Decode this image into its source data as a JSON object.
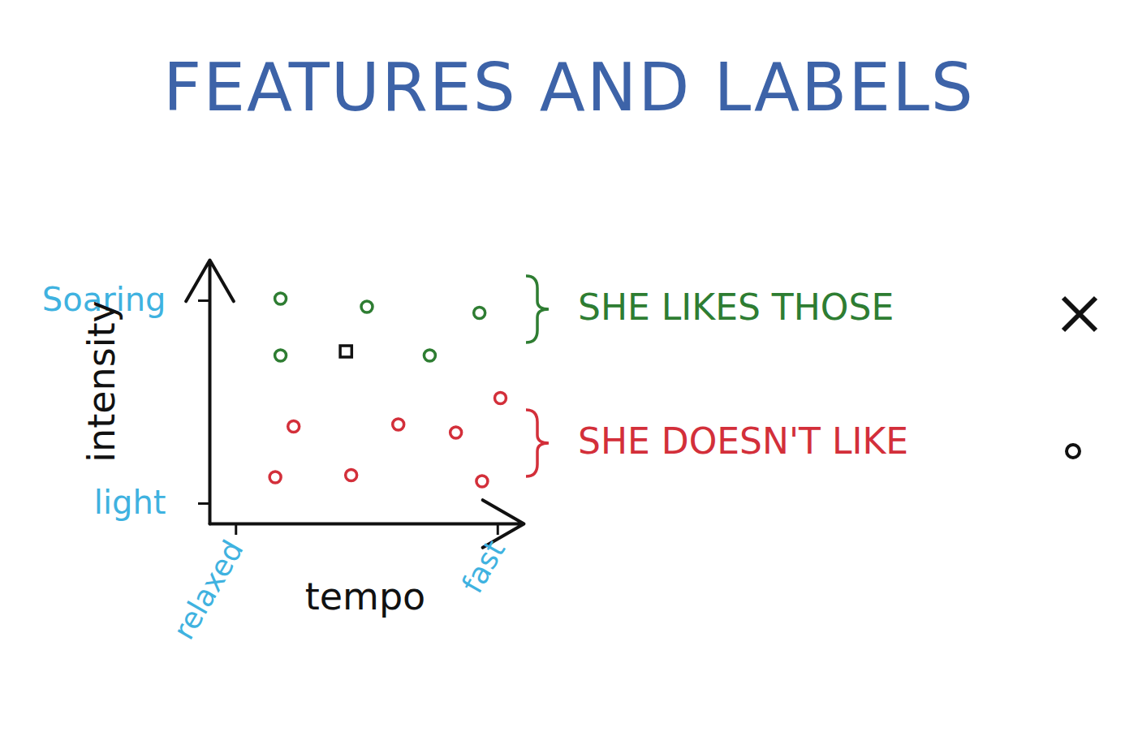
{
  "chart_data": {
    "type": "scatter",
    "title": "FEATURES AND LABELS",
    "x_label": "tempo",
    "y_label": "intensity",
    "xlim": [
      -1,
      11
    ],
    "ylim": [
      -1,
      12
    ],
    "xticks": [
      {
        "value": 0,
        "label": "relaxed"
      },
      {
        "value": 10,
        "label": "fast"
      }
    ],
    "yticks": [
      {
        "value": 0,
        "label": "light"
      },
      {
        "value": 10,
        "label": "Soaring"
      }
    ],
    "grid": false,
    "series": [
      {
        "name": "SHE LIKES THOSE",
        "color": "#2e7d32",
        "marker": "circle",
        "x": [
          1.7,
          5.0,
          9.3,
          1.7,
          7.4
        ],
        "y": [
          10.1,
          9.7,
          9.4,
          7.3,
          7.3
        ]
      },
      {
        "name": "SHE DOESN'T LIKE",
        "color": "#d32f3a",
        "marker": "circle",
        "x": [
          2.2,
          6.2,
          8.4,
          10.1,
          1.5,
          4.4,
          9.4
        ],
        "y": [
          3.8,
          3.9,
          3.5,
          5.2,
          1.3,
          1.4,
          1.1
        ]
      },
      {
        "name": null,
        "color": "#111111",
        "marker": "square",
        "x": [
          4.2
        ],
        "y": [
          7.5
        ]
      }
    ]
  }
}
